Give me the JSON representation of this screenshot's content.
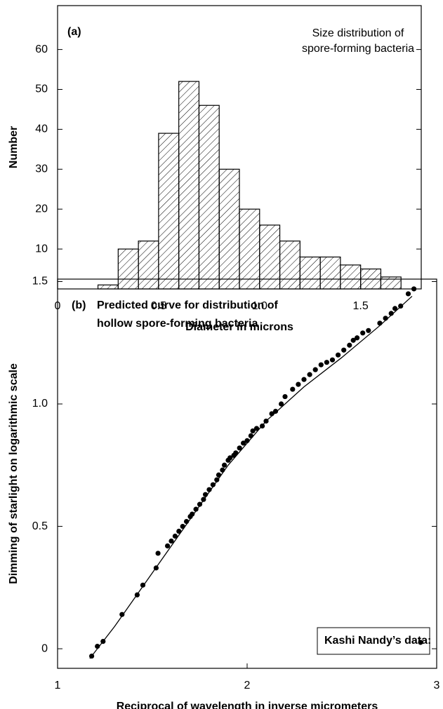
{
  "chart_data": [
    {
      "type": "histogram",
      "panel_label": "(a)",
      "annotation": [
        "Size distribution of",
        "spore-forming bacteria"
      ],
      "x_label": "Diameter in microns",
      "y_label": "Number",
      "color": "#000000",
      "hatch": true,
      "bins": [
        0.2,
        0.3,
        0.4,
        0.5,
        0.6,
        0.7,
        0.8,
        0.9,
        1.0,
        1.1,
        1.2,
        1.3,
        1.4,
        1.5,
        1.6,
        1.7
      ],
      "values": [
        1,
        10,
        12,
        39,
        52,
        46,
        30,
        20,
        16,
        12,
        8,
        8,
        6,
        5,
        3
      ],
      "xlim": [
        0,
        1.8
      ],
      "ylim": [
        0,
        71
      ],
      "xticks": [
        0,
        0.5,
        {
          "value": 1,
          "label": "1.0"
        },
        1.5
      ],
      "yticks": [
        10,
        20,
        30,
        40,
        50,
        60
      ]
    },
    {
      "type": "scatter",
      "panel_label": "(b)",
      "annotation": [
        "Predicted curve for distribution of",
        "hollow spore-forming bacteria"
      ],
      "x_label": "Reciprocal of wavelength in inverse micrometers",
      "y_label": "Dimming of starlight on logarithmic scale",
      "legend": "lower right",
      "series": [
        {
          "name": "Kashi Nandy’s data:",
          "color": "#000000",
          "x": [
            1.18,
            1.21,
            1.24,
            1.34,
            1.42,
            1.45,
            1.52,
            1.53,
            1.58,
            1.6,
            1.62,
            1.64,
            1.66,
            1.68,
            1.7,
            1.71,
            1.73,
            1.75,
            1.77,
            1.78,
            1.8,
            1.82,
            1.84,
            1.85,
            1.87,
            1.88,
            1.9,
            1.91,
            1.93,
            1.94,
            1.96,
            1.98,
            2.0,
            2.02,
            2.03,
            2.05,
            2.08,
            2.1,
            2.13,
            2.15,
            2.18,
            2.2,
            2.24,
            2.27,
            2.3,
            2.33,
            2.36,
            2.39,
            2.42,
            2.45,
            2.48,
            2.51,
            2.54,
            2.56,
            2.58,
            2.61,
            2.64,
            2.7,
            2.73,
            2.76,
            2.78,
            2.81,
            2.85,
            2.88
          ],
          "values": [
            -0.03,
            0.01,
            0.03,
            0.14,
            0.22,
            0.26,
            0.33,
            0.39,
            0.42,
            0.44,
            0.46,
            0.48,
            0.5,
            0.52,
            0.54,
            0.55,
            0.57,
            0.59,
            0.61,
            0.63,
            0.65,
            0.67,
            0.69,
            0.71,
            0.73,
            0.75,
            0.77,
            0.78,
            0.79,
            0.8,
            0.82,
            0.84,
            0.85,
            0.87,
            0.89,
            0.9,
            0.91,
            0.93,
            0.96,
            0.97,
            1.0,
            1.03,
            1.06,
            1.08,
            1.1,
            1.12,
            1.14,
            1.16,
            1.17,
            1.18,
            1.2,
            1.22,
            1.24,
            1.26,
            1.27,
            1.29,
            1.3,
            1.33,
            1.35,
            1.37,
            1.39,
            1.4,
            1.45,
            1.47
          ]
        },
        {
          "type": "line",
          "color": "#000000",
          "x": [
            1.17,
            1.3,
            1.5,
            1.7,
            1.9,
            2.1,
            2.3,
            2.5,
            2.7,
            2.87
          ],
          "values": [
            -0.04,
            0.09,
            0.31,
            0.53,
            0.75,
            0.93,
            1.07,
            1.19,
            1.32,
            1.44
          ]
        }
      ],
      "xlim": [
        1,
        3
      ],
      "ylim": [
        -0.08,
        1.51
      ],
      "xticks": [
        1,
        2,
        3
      ],
      "yticks": [
        0,
        0.5,
        {
          "value": 1,
          "label": "1.0"
        },
        1.5
      ]
    }
  ]
}
